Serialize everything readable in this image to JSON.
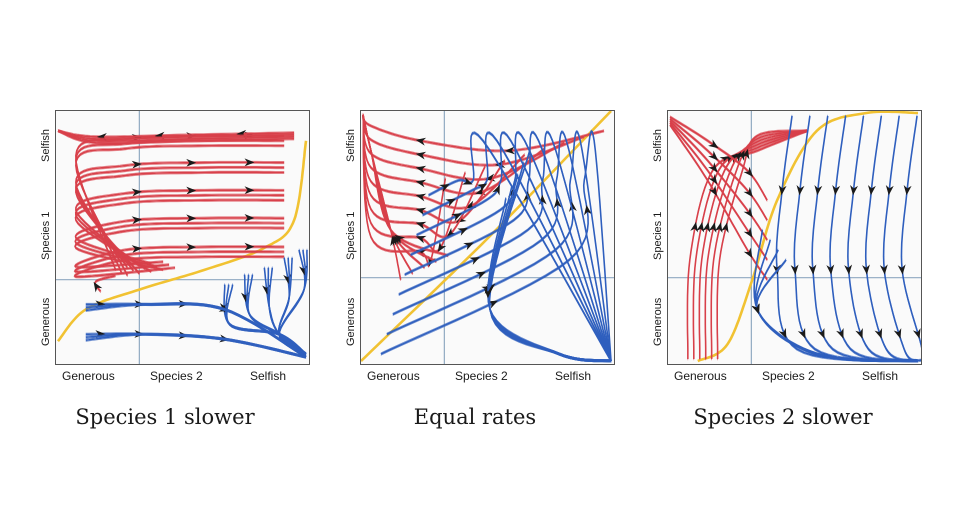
{
  "colors": {
    "red": "#d8404a",
    "blue": "#2f5fbe",
    "yellow": "#f1c232",
    "grid": "#8fa8c0",
    "arrow": "#1a1a1a"
  },
  "panels": [
    {
      "id": "species1-slower",
      "caption": "Species 1 slower",
      "y_axis": {
        "title": "Species 1",
        "top": "Selfish",
        "bottom": "Generous"
      },
      "x_axis": {
        "title": "Species 2",
        "left": "Generous",
        "right": "Selfish"
      },
      "separatrix": "s-curve-low"
    },
    {
      "id": "equal-rates",
      "caption": "Equal rates",
      "y_axis": {
        "title": "Species 1",
        "top": "Selfish",
        "bottom": "Generous"
      },
      "x_axis": {
        "title": "Species 2",
        "left": "Generous",
        "right": "Selfish"
      },
      "separatrix": "diagonal"
    },
    {
      "id": "species2-slower",
      "caption": "Species 2 slower",
      "y_axis": {
        "title": "Species 1",
        "top": "Selfish",
        "bottom": "Generous"
      },
      "x_axis": {
        "title": "Species 2",
        "left": "Generous",
        "right": "Selfish"
      },
      "separatrix": "s-curve-steep"
    }
  ]
}
